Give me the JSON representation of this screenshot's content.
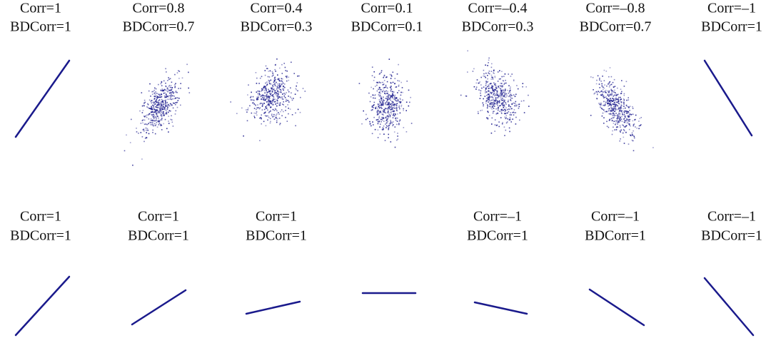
{
  "top_row": [
    {
      "corr": "Corr=1",
      "bdcorr": "BDCorr=1"
    },
    {
      "corr": "Corr=0.8",
      "bdcorr": "BDCorr=0.7"
    },
    {
      "corr": "Corr=0.4",
      "bdcorr": "BDCorr=0.3"
    },
    {
      "corr": "Corr=0.1",
      "bdcorr": "BDCorr=0.1"
    },
    {
      "corr": "Corr=–0.4",
      "bdcorr": "BDCorr=0.3"
    },
    {
      "corr": "Corr=–0.8",
      "bdcorr": "BDCorr=0.7"
    },
    {
      "corr": "Corr=–1",
      "bdcorr": "BDCorr=1"
    }
  ],
  "bottom_row": [
    {
      "corr": "Corr=1",
      "bdcorr": "BDCorr=1"
    },
    {
      "corr": "Corr=1",
      "bdcorr": "BDCorr=1"
    },
    {
      "corr": "Corr=1",
      "bdcorr": "BDCorr=1"
    },
    {
      "corr": "Corr=–1",
      "bdcorr": "BDCorr=1"
    },
    {
      "corr": "Corr=–1",
      "bdcorr": "BDCorr=1"
    },
    {
      "corr": "Corr=–1",
      "bdcorr": "BDCorr=1"
    }
  ]
}
